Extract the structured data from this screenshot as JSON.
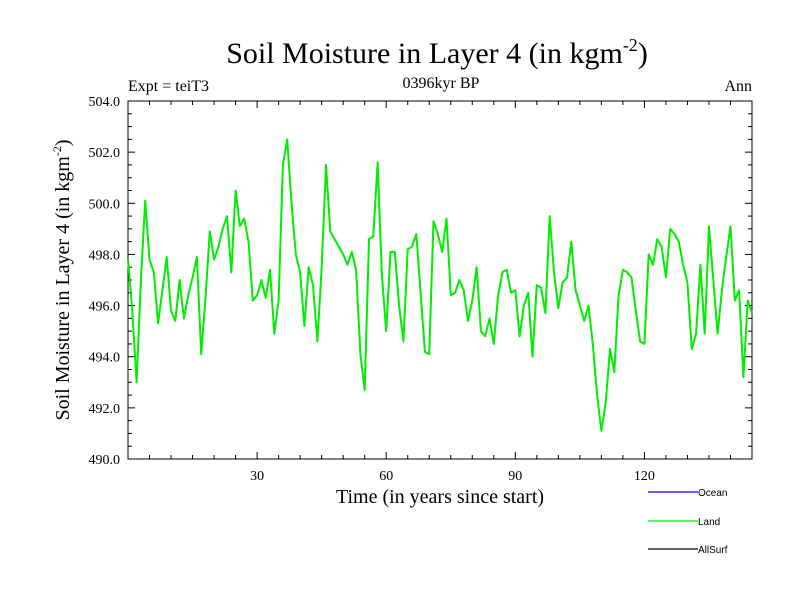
{
  "chart_data": {
    "type": "line",
    "title": "Soil Moisture in Layer 4 (in kgm",
    "title_exponent": "-2",
    "title_suffix": ")",
    "subtitle_left": "Expt = teiT3",
    "subtitle_center": "0396kyr BP",
    "subtitle_right": "Ann",
    "xlabel": "Time (in years since start)",
    "ylabel": "Soil Moisture in Layer 4 (in kgm",
    "ylabel_exponent": "-2",
    "ylabel_suffix": ")",
    "xlim": [
      0,
      145
    ],
    "ylim": [
      490,
      504
    ],
    "xticks": [
      30,
      60,
      90,
      120
    ],
    "yticks": [
      490,
      492,
      494,
      496,
      498,
      500,
      502,
      504
    ],
    "ytick_labels": [
      "490.0",
      "492.0",
      "494.0",
      "496.0",
      "498.0",
      "500.0",
      "502.0",
      "504.0"
    ],
    "legend": [
      {
        "name": "Ocean",
        "color": "#0000ff"
      },
      {
        "name": "Land",
        "color": "#00ee00"
      },
      {
        "name": "AllSurf",
        "color": "#000000"
      }
    ],
    "series": [
      {
        "name": "Land",
        "color": "#00ee00",
        "x": [
          0,
          1,
          2,
          3,
          4,
          5,
          6,
          7,
          8,
          9,
          10,
          11,
          12,
          13,
          14,
          15,
          16,
          17,
          18,
          19,
          20,
          21,
          22,
          23,
          24,
          25,
          26,
          27,
          28,
          29,
          30,
          31,
          32,
          33,
          34,
          35,
          36,
          37,
          38,
          39,
          40,
          41,
          42,
          43,
          44,
          45,
          46,
          47,
          48,
          49,
          50,
          51,
          52,
          53,
          54,
          55,
          56,
          57,
          58,
          59,
          60,
          61,
          62,
          63,
          64,
          65,
          66,
          67,
          68,
          69,
          70,
          71,
          72,
          73,
          74,
          75,
          76,
          77,
          78,
          79,
          80,
          81,
          82,
          83,
          84,
          85,
          86,
          87,
          88,
          89,
          90,
          91,
          92,
          93,
          94,
          95,
          96,
          97,
          98,
          99,
          100,
          101,
          102,
          103,
          104,
          105,
          106,
          107,
          108,
          109,
          110,
          111,
          112,
          113,
          114,
          115,
          116,
          117,
          118,
          119,
          120,
          121,
          122,
          123,
          124,
          125,
          126,
          127,
          128,
          129,
          130,
          131,
          132,
          133,
          134,
          135,
          136,
          137,
          138,
          139,
          140,
          141,
          142,
          143,
          144,
          145
        ],
        "values": [
          497.8,
          495.8,
          493.0,
          497.0,
          500.1,
          497.8,
          497.3,
          495.3,
          496.6,
          497.9,
          495.8,
          495.4,
          497.0,
          495.5,
          496.4,
          497.1,
          497.9,
          494.1,
          496.3,
          498.9,
          497.8,
          498.3,
          499.0,
          499.5,
          497.3,
          500.5,
          499.1,
          499.4,
          498.5,
          496.2,
          496.4,
          497.0,
          496.3,
          497.4,
          494.9,
          496.2,
          501.5,
          502.5,
          500.0,
          498.0,
          497.3,
          495.2,
          497.5,
          496.8,
          494.6,
          497.5,
          501.5,
          498.9,
          498.6,
          498.3,
          498.0,
          497.6,
          498.1,
          497.4,
          494.1,
          492.7,
          498.6,
          498.7,
          501.6,
          497.2,
          495.0,
          498.1,
          498.1,
          496.0,
          494.6,
          498.2,
          498.3,
          498.8,
          496.5,
          494.2,
          494.1,
          499.3,
          498.8,
          498.1,
          499.4,
          496.4,
          496.5,
          497.0,
          496.6,
          495.4,
          496.2,
          497.5,
          495.0,
          494.8,
          495.5,
          494.5,
          496.4,
          497.3,
          497.4,
          496.5,
          496.6,
          494.8,
          496.0,
          496.5,
          494.0,
          496.8,
          496.7,
          495.7,
          499.5,
          497.3,
          495.9,
          496.9,
          497.1,
          498.5,
          496.6,
          496.0,
          495.4,
          496.0,
          494.5,
          492.5,
          491.1,
          492.2,
          494.3,
          493.4,
          496.4,
          497.4,
          497.3,
          497.1,
          495.8,
          494.6,
          494.5,
          498.0,
          497.6,
          498.6,
          498.3,
          497.1,
          499.0,
          498.8,
          498.5,
          497.6,
          496.9,
          494.3,
          494.9,
          497.6,
          494.9,
          499.1,
          497.0,
          494.9,
          496.6,
          497.9,
          499.1,
          496.2,
          496.6,
          493.2,
          496.2,
          495.7
        ]
      }
    ]
  }
}
